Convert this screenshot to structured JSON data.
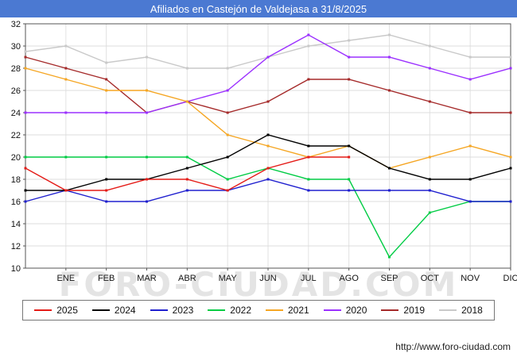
{
  "colors": {
    "title_bar": "#4b79d2",
    "grid": "#dcdcdc",
    "axis": "#555555"
  },
  "watermark": {
    "text": "FORO-CIUDAD.COM"
  },
  "footer": {
    "url": "http://www.foro-ciudad.com"
  },
  "chart_data": {
    "type": "line",
    "title": "Afiliados en Castejón de Valdejasa a 31/8/2025",
    "xlabel": "",
    "ylabel": "",
    "ylim": [
      10,
      32
    ],
    "ytick_step": 2,
    "grid": true,
    "legend_position": "bottom",
    "x_labels": [
      "ENE",
      "FEB",
      "MAR",
      "ABR",
      "MAY",
      "JUN",
      "JUL",
      "AGO",
      "SEP",
      "OCT",
      "NOV",
      "DIC"
    ],
    "x_labels_offset": 1,
    "series": [
      {
        "name": "2025",
        "color": "#e41b17",
        "values": [
          19,
          17,
          17,
          18,
          18,
          17,
          19,
          20,
          20,
          null,
          null,
          null,
          null
        ]
      },
      {
        "name": "2024",
        "color": "#000000",
        "values": [
          17,
          17,
          18,
          18,
          19,
          20,
          22,
          21,
          21,
          19,
          18,
          18,
          19
        ]
      },
      {
        "name": "2023",
        "color": "#2020cf",
        "values": [
          16,
          17,
          16,
          16,
          17,
          17,
          18,
          17,
          17,
          17,
          17,
          16,
          16
        ]
      },
      {
        "name": "2022",
        "color": "#00cc44",
        "values": [
          20,
          20,
          20,
          20,
          20,
          18,
          19,
          18,
          18,
          11,
          15,
          16,
          16
        ]
      },
      {
        "name": "2021",
        "color": "#f5a623",
        "values": [
          28,
          27,
          26,
          26,
          25,
          22,
          21,
          20,
          21,
          19,
          20,
          21,
          20
        ]
      },
      {
        "name": "2020",
        "color": "#9b30ff",
        "values": [
          24,
          24,
          24,
          24,
          25,
          26,
          29,
          31,
          29,
          29,
          28,
          27,
          28
        ]
      },
      {
        "name": "2019",
        "color": "#a52a2a",
        "values": [
          29,
          28,
          27,
          24,
          25,
          24,
          25,
          27,
          27,
          26,
          25,
          24,
          24
        ]
      },
      {
        "name": "2018",
        "color": "#c9c9c9",
        "values": [
          29.5,
          30,
          28.5,
          29,
          28,
          28,
          29,
          30,
          30.5,
          31,
          30,
          29,
          29
        ]
      }
    ]
  }
}
